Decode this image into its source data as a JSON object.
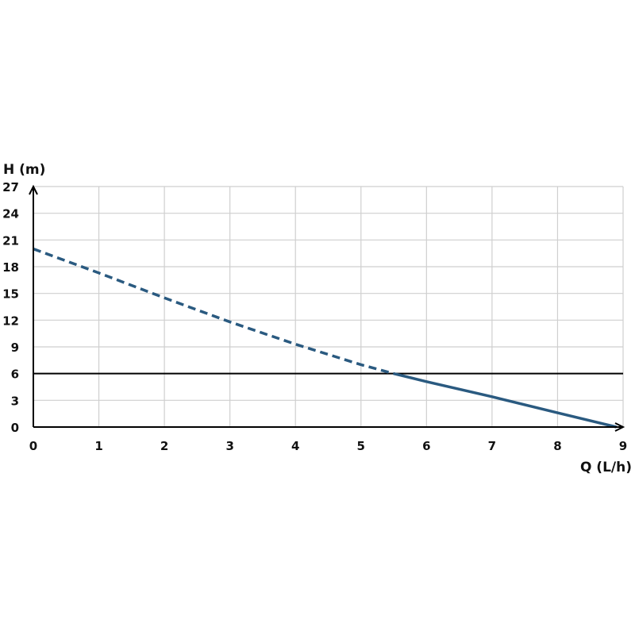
{
  "chart_data": {
    "type": "line",
    "title": "",
    "xlabel": "Q (L/h)",
    "ylabel": "H (m)",
    "xlim": [
      0,
      9
    ],
    "ylim": [
      0,
      27
    ],
    "x_ticks": [
      "0",
      "1",
      "2",
      "3",
      "4",
      "5",
      "6",
      "7",
      "8",
      "9"
    ],
    "y_ticks": [
      "0",
      "3",
      "6",
      "9",
      "12",
      "15",
      "18",
      "21",
      "24",
      "27"
    ],
    "grid": true,
    "series": [
      {
        "style": "dashed",
        "color": "#2a5a80",
        "x": [
          0,
          1,
          2,
          3,
          4,
          5,
          5.5
        ],
        "y": [
          20,
          17.3,
          14.5,
          11.8,
          9.3,
          7.0,
          6
        ]
      },
      {
        "style": "solid",
        "color": "#2a5a80",
        "x": [
          5.5,
          6,
          7,
          8,
          8.9
        ],
        "y": [
          6,
          5.1,
          3.4,
          1.6,
          0
        ]
      }
    ],
    "reference_line": {
      "y": 6,
      "color": "#000000"
    }
  }
}
